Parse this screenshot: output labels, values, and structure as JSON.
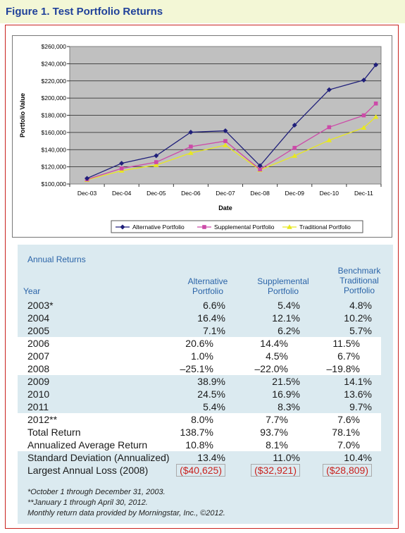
{
  "figure_title": "Figure 1. Test Portfolio Returns",
  "chart_data": {
    "type": "line",
    "title": "",
    "xlabel": "Date",
    "ylabel": "Portfolio Value",
    "categories": [
      "Dec-03",
      "Dec-04",
      "Dec-05",
      "Dec-06",
      "Dec-07",
      "Dec-08",
      "Dec-09",
      "Dec-10",
      "Dec-11"
    ],
    "y_ticks": [
      "$100,000",
      "$120,000",
      "$140,000",
      "$160,000",
      "$180,000",
      "$200,000",
      "$220,000",
      "$240,000",
      "$260,000"
    ],
    "ylim": [
      100000,
      260000
    ],
    "grid": true,
    "legend_position": "bottom",
    "series": [
      {
        "name": "Alternative Portfolio",
        "color": "#1f1f7a",
        "marker": "diamond",
        "x": [
          0,
          1,
          2,
          3,
          4,
          5,
          6,
          7,
          8,
          8.35
        ],
        "values": [
          106600,
          124100,
          132900,
          160300,
          161900,
          121300,
          168500,
          209700,
          220900,
          238700
        ]
      },
      {
        "name": "Supplemental Portfolio",
        "color": "#cc4aa8",
        "marker": "square",
        "x": [
          0,
          1,
          2,
          3,
          4,
          5,
          6,
          7,
          8,
          8.35
        ],
        "values": [
          105400,
          118100,
          125400,
          143500,
          150000,
          117000,
          142100,
          166100,
          179900,
          193700
        ]
      },
      {
        "name": "Traditional Portfolio",
        "color": "#e8e820",
        "marker": "triangle",
        "x": [
          0,
          1,
          2,
          3,
          4,
          5,
          6,
          7,
          8,
          8.35
        ],
        "values": [
          104800,
          115500,
          122100,
          136100,
          145200,
          116400,
          132800,
          150900,
          165500,
          178100
        ]
      }
    ]
  },
  "table": {
    "title": "Annual Returns",
    "headers": {
      "year": "Year",
      "alt_1": "Alternative",
      "alt_2": "Portfolio",
      "sup_1": "Supplemental",
      "sup_2": "Portfolio",
      "ben_1": "Benchmark",
      "ben_2": "Traditional",
      "ben_3": "Portfolio"
    },
    "rows": [
      {
        "label": "2003*",
        "alt": "6.6%",
        "sup": "5.4%",
        "ben": "4.8%",
        "bg": "blue"
      },
      {
        "label": "2004",
        "alt": "16.4%",
        "sup": "12.1%",
        "ben": "10.2%",
        "bg": "blue"
      },
      {
        "label": "2005",
        "alt": "7.1%",
        "sup": "6.2%",
        "ben": "5.7%",
        "bg": "blue"
      },
      {
        "label": "2006",
        "alt": "20.6%",
        "sup": "14.4%",
        "ben": "11.5%",
        "bg": "white"
      },
      {
        "label": "2007",
        "alt": "1.0%",
        "sup": "4.5%",
        "ben": "6.7%",
        "bg": "white"
      },
      {
        "label": "2008",
        "alt": "–25.1%",
        "sup": "–22.0%",
        "ben": "–19.8%",
        "bg": "white"
      },
      {
        "label": "2009",
        "alt": "38.9%",
        "sup": "21.5%",
        "ben": "14.1%",
        "bg": "blue"
      },
      {
        "label": "2010",
        "alt": "24.5%",
        "sup": "16.9%",
        "ben": "13.6%",
        "bg": "blue"
      },
      {
        "label": "2011",
        "alt": "5.4%",
        "sup": "8.3%",
        "ben": "9.7%",
        "bg": "blue"
      },
      {
        "label": "2012**",
        "alt": "8.0%",
        "sup": "7.7%",
        "ben": "7.6%",
        "bg": "white"
      },
      {
        "label": "Total Return",
        "alt": "138.7%",
        "sup": "93.7%",
        "ben": "78.1%",
        "bg": "white"
      },
      {
        "label": "Annualized Average Return",
        "alt": "10.8%",
        "sup": "8.1%",
        "ben": "7.0%",
        "bg": "white"
      },
      {
        "label": "Standard Deviation (Annualized)",
        "alt": "13.4%",
        "sup": "11.0%",
        "ben": "10.4%",
        "bg": "blue"
      },
      {
        "label": "Largest Annual Loss (2008)",
        "alt": "($40,625)",
        "sup": "($32,921)",
        "ben": "($28,809)",
        "bg": "blue",
        "negative": true
      }
    ],
    "notes": [
      "*October 1 through December 31, 2003.",
      "**January 1 through April 30, 2012.",
      "Monthly return data provided by Morningstar, Inc., ©2012."
    ]
  }
}
